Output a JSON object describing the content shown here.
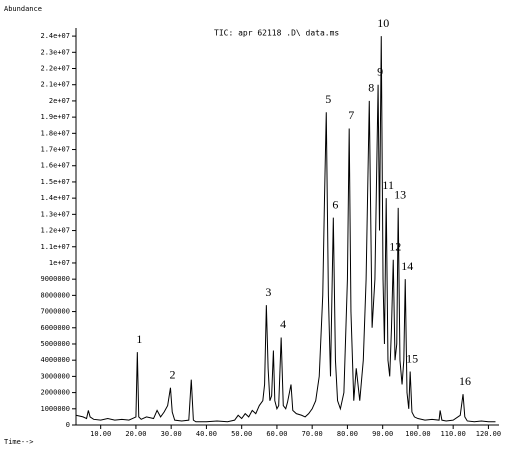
{
  "chart_data": {
    "type": "line",
    "title": "TIC: apr 62118 .D\\ data.ms",
    "y_label": "Abundance",
    "x_label": "Time-->",
    "color": "#000000",
    "xlim": [
      3,
      123
    ],
    "ylim": [
      0,
      24500000
    ],
    "xticks": [
      {
        "value": 10,
        "label": "10.00"
      },
      {
        "value": 20,
        "label": "20.00"
      },
      {
        "value": 30,
        "label": "30.00"
      },
      {
        "value": 40,
        "label": "40.00"
      },
      {
        "value": 50,
        "label": "50.00"
      },
      {
        "value": 60,
        "label": "60.00"
      },
      {
        "value": 70,
        "label": "70.00"
      },
      {
        "value": 80,
        "label": "80.00"
      },
      {
        "value": 90,
        "label": "90.00"
      },
      {
        "value": 100,
        "label": "100.00"
      },
      {
        "value": 110,
        "label": "110.00"
      },
      {
        "value": 120,
        "label": "120.00"
      }
    ],
    "yticks": [
      0,
      1000000,
      2000000,
      3000000,
      4000000,
      5000000,
      6000000,
      7000000,
      8000000,
      9000000,
      {
        "value": 10000000,
        "label": "1e+07"
      },
      {
        "value": 11000000,
        "label": "1.1e+07"
      },
      {
        "value": 12000000,
        "label": "1.2e+07"
      },
      {
        "value": 13000000,
        "label": "1.3e+07"
      },
      {
        "value": 14000000,
        "label": "1.4e+07"
      },
      {
        "value": 15000000,
        "label": "1.5e+07"
      },
      {
        "value": 16000000,
        "label": "1.6e+07"
      },
      {
        "value": 17000000,
        "label": "1.7e+07"
      },
      {
        "value": 18000000,
        "label": "1.8e+07"
      },
      {
        "value": 19000000,
        "label": "1.9e+07"
      },
      {
        "value": 20000000,
        "label": "2e+07"
      },
      {
        "value": 21000000,
        "label": "2.1e+07"
      },
      {
        "value": 22000000,
        "label": "2.2e+07"
      },
      {
        "value": 23000000,
        "label": "2.3e+07"
      },
      {
        "value": 24000000,
        "label": "2.4e+07"
      }
    ],
    "x": [
      3,
      5,
      6,
      6.5,
      7,
      8,
      10,
      12,
      14,
      16,
      18,
      19,
      20,
      20.4,
      20.8,
      21.5,
      23,
      25,
      26,
      27,
      28,
      29,
      29.8,
      30.3,
      31,
      33,
      35,
      35.7,
      36.3,
      37,
      40,
      43,
      46,
      48,
      49,
      50,
      51,
      52,
      53,
      54,
      55,
      56,
      56.5,
      57,
      57.5,
      58,
      58.5,
      59,
      59.4,
      60,
      60.5,
      61.2,
      61.8,
      62.5,
      63,
      64,
      64.5,
      65.5,
      67,
      68,
      69,
      70,
      71,
      72,
      73,
      73.5,
      74,
      74.6,
      75.2,
      76,
      76.6,
      77.2,
      78,
      79,
      80,
      80.5,
      81,
      81.8,
      82.5,
      83.5,
      84.5,
      85.3,
      86.2,
      87,
      87.8,
      88.7,
      89.1,
      89.6,
      90.1,
      90.5,
      91,
      91.5,
      92,
      92.5,
      93,
      93.5,
      94,
      94.4,
      94.9,
      95.5,
      96,
      96.4,
      96.9,
      97.4,
      97.8,
      98.3,
      99,
      100,
      102,
      104,
      106,
      106.3,
      106.8,
      108,
      110,
      112,
      112.8,
      113.3,
      114,
      116,
      118,
      120,
      122
    ],
    "values": [
      600000,
      500000,
      400000,
      900000,
      500000,
      350000,
      300000,
      400000,
      300000,
      350000,
      300000,
      400000,
      500000,
      4500000,
      500000,
      350000,
      500000,
      400000,
      900000,
      500000,
      800000,
      1200000,
      2300000,
      800000,
      300000,
      250000,
      300000,
      2800000,
      300000,
      200000,
      200000,
      250000,
      200000,
      300000,
      600000,
      400000,
      700000,
      500000,
      900000,
      700000,
      1200000,
      1500000,
      2500000,
      7400000,
      3500000,
      1500000,
      1800000,
      4600000,
      1500000,
      1000000,
      1200000,
      5400000,
      1200000,
      1000000,
      1400000,
      2500000,
      900000,
      700000,
      600000,
      500000,
      700000,
      1000000,
      1500000,
      3000000,
      8000000,
      14000000,
      19300000,
      8000000,
      3000000,
      12800000,
      4000000,
      1500000,
      1000000,
      2000000,
      9000000,
      18300000,
      7000000,
      1500000,
      3500000,
      1500000,
      4000000,
      9000000,
      20000000,
      6000000,
      9000000,
      21000000,
      12000000,
      24000000,
      9000000,
      5000000,
      14000000,
      4000000,
      3000000,
      6000000,
      10200000,
      4000000,
      5000000,
      13400000,
      4000000,
      2500000,
      4000000,
      9000000,
      2000000,
      1000000,
      3300000,
      800000,
      500000,
      400000,
      300000,
      350000,
      300000,
      900000,
      300000,
      250000,
      300000,
      600000,
      1900000,
      500000,
      250000,
      200000,
      250000,
      200000,
      200000
    ],
    "annotations": [
      {
        "text": "1",
        "x": 20.4
      },
      {
        "text": "2",
        "x": 29.8
      },
      {
        "text": "3",
        "x": 57
      },
      {
        "text": "4",
        "x": 61.2
      },
      {
        "text": "5",
        "x": 74
      },
      {
        "text": "6",
        "x": 76
      },
      {
        "text": "7",
        "x": 80.5
      },
      {
        "text": "8",
        "x": 86.2
      },
      {
        "text": "9",
        "x": 88.7
      },
      {
        "text": "10",
        "x": 89.6
      },
      {
        "text": "11",
        "x": 91
      },
      {
        "text": "12",
        "x": 93
      },
      {
        "text": "13",
        "x": 94.4
      },
      {
        "text": "14",
        "x": 96.4
      },
      {
        "text": "15",
        "x": 97.8
      },
      {
        "text": "16",
        "x": 112.8
      }
    ]
  }
}
